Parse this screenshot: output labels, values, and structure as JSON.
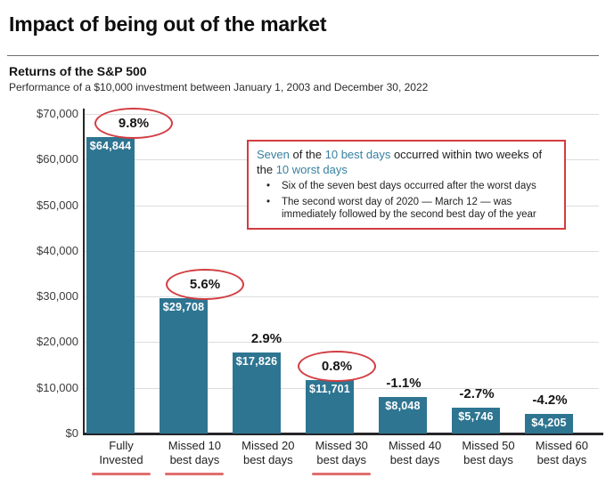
{
  "page": {
    "title": "Impact of being out of the market"
  },
  "chart_header": {
    "title": "Returns of the S&P 500",
    "subtitle": "Performance of a $10,000 investment between January 1, 2003 and December 30, 2022"
  },
  "annotation": {
    "bullet_char": "•",
    "intro_segments": [
      {
        "text": "Seven",
        "highlight": true
      },
      {
        "text": " of the ",
        "highlight": false
      },
      {
        "text": "10 best days",
        "highlight": true
      },
      {
        "text": " occurred within two weeks of\nthe ",
        "highlight": false
      },
      {
        "text": "10 worst days",
        "highlight": true
      }
    ],
    "bullets": [
      "Six of the seven best days occurred after the worst days",
      "The second worst day of 2020 — March 12 — was\nimmediately followed by the second best day of the year"
    ]
  },
  "chart_data": {
    "type": "bar",
    "title": "Returns of the S&P 500",
    "subtitle": "Performance of a $10,000 investment between January 1, 2003 and December 30, 2022",
    "categories": [
      "Fully Invested",
      "Missed 10 best days",
      "Missed 20 best days",
      "Missed 30 best days",
      "Missed 40 best days",
      "Missed 50 best days",
      "Missed 60 best days"
    ],
    "category_lines": [
      [
        "Fully",
        "Invested"
      ],
      [
        "Missed 10",
        "best days"
      ],
      [
        "Missed 20",
        "best days"
      ],
      [
        "Missed 30",
        "best days"
      ],
      [
        "Missed 40",
        "best days"
      ],
      [
        "Missed 50",
        "best days"
      ],
      [
        "Missed 60",
        "best days"
      ]
    ],
    "values": [
      64844,
      29708,
      17826,
      11701,
      8048,
      5746,
      4205
    ],
    "value_labels": [
      "$64,844",
      "$29,708",
      "$17,826",
      "$11,701",
      "$8,048",
      "$5,746",
      "$4,205"
    ],
    "pct_labels": [
      "9.8%",
      "5.6%",
      "2.9%",
      "0.8%",
      "-1.1%",
      "-2.7%",
      "-4.2%"
    ],
    "circled": [
      true,
      true,
      false,
      true,
      false,
      false,
      false
    ],
    "underlined": [
      true,
      true,
      false,
      true,
      false,
      false,
      false
    ],
    "ylabel": "",
    "xlabel": "",
    "ylim": [
      0,
      70000
    ],
    "ytick_values": [
      70000,
      60000,
      50000,
      40000,
      30000,
      20000,
      10000,
      0
    ],
    "ytick_labels": [
      "$70,000",
      "$60,000",
      "$50,000",
      "$40,000",
      "$30,000",
      "$20,000",
      "$10,000",
      "$0"
    ],
    "grid": "horizontal",
    "legend": "none",
    "colors": {
      "bar": "#2e7591",
      "highlight_text": "#3780a1",
      "annotation_border": "#d23c41",
      "circle": "#d23c41",
      "underline": "#e06d6e",
      "gridline": "#dcdcdc",
      "axis": "#26262a",
      "value_label": "#ffffff",
      "text": "#1a1a1a"
    }
  }
}
